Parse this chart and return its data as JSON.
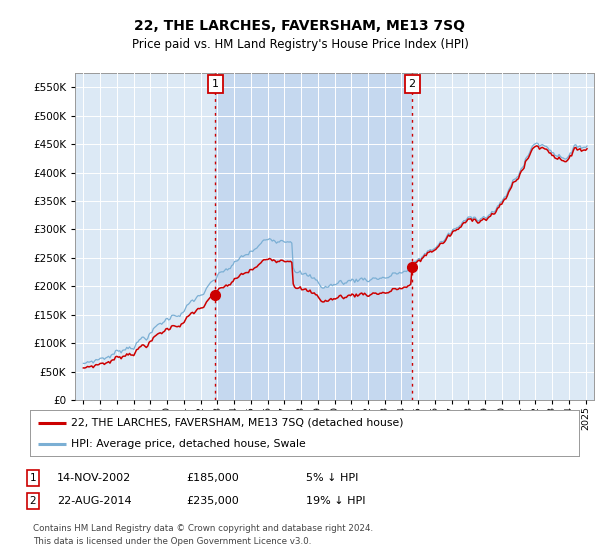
{
  "title": "22, THE LARCHES, FAVERSHAM, ME13 7SQ",
  "subtitle": "Price paid vs. HM Land Registry's House Price Index (HPI)",
  "bg_color": "#dce9f5",
  "shade_color": "#c5d8ef",
  "red_line_color": "#cc0000",
  "blue_line_color": "#7bafd4",
  "grid_color": "#bbccdd",
  "legend_label_red": "22, THE LARCHES, FAVERSHAM, ME13 7SQ (detached house)",
  "legend_label_blue": "HPI: Average price, detached house, Swale",
  "footnote1": "Contains HM Land Registry data © Crown copyright and database right 2024.",
  "footnote2": "This data is licensed under the Open Government Licence v3.0.",
  "marker1_date": "14-NOV-2002",
  "marker1_price": 185000,
  "marker1_hpi": "5% ↓ HPI",
  "marker1_x": 2002.87,
  "marker2_date": "22-AUG-2014",
  "marker2_price": 235000,
  "marker2_hpi": "19% ↓ HPI",
  "marker2_x": 2014.64,
  "ylim_min": 0,
  "ylim_max": 575000,
  "xlim_min": 1994.5,
  "xlim_max": 2025.5
}
